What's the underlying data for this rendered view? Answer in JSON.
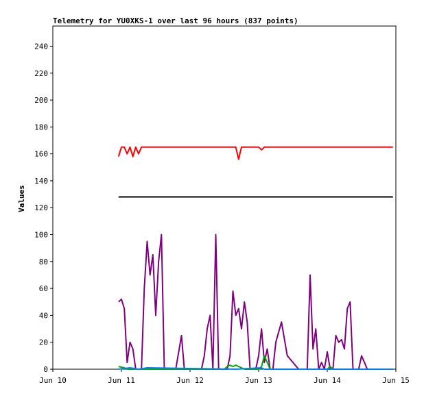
{
  "chart_data": {
    "type": "line",
    "title": "Telemetry for YU0XKS-1 over last 96 hours (837 points)",
    "xlabel": "",
    "ylabel": "Values",
    "xlim": [
      "2024-06-10",
      "2024-06-15"
    ],
    "ylim": [
      0,
      255
    ],
    "x_tick_labels": [
      "Jun 10",
      "Jun 11",
      "Jun 12",
      "Jun 13",
      "Jun 14",
      "Jun 15"
    ],
    "x_tick_values": [
      "2024-06-10",
      "2024-06-11",
      "2024-06-12",
      "2024-06-13",
      "2024-06-14",
      "2024-06-15"
    ],
    "y_ticks": [
      0,
      20,
      40,
      60,
      80,
      100,
      120,
      140,
      160,
      180,
      200,
      220,
      240
    ],
    "grid": false,
    "legend": "none",
    "colors": {
      "red": "#ff0000",
      "black": "#000000",
      "purple": "#800080",
      "green": "#00aa00",
      "blue": "#0080ff"
    },
    "series": [
      {
        "color": "#ff0000",
        "x": [
          "2024-06-10T23:00",
          "2024-06-11T00:00",
          "2024-06-11T01:00",
          "2024-06-11T02:00",
          "2024-06-11T03:00",
          "2024-06-11T04:00",
          "2024-06-11T05:00",
          "2024-06-11T06:00",
          "2024-06-11T07:00",
          "2024-06-11T08:00",
          "2024-06-11T09:00",
          "2024-06-11T10:00",
          "2024-06-11T12:00",
          "2024-06-11T14:00",
          "2024-06-11T16:00",
          "2024-06-12T00:00",
          "2024-06-12T12:00",
          "2024-06-12T16:00",
          "2024-06-12T17:00",
          "2024-06-12T18:00",
          "2024-06-13T00:00",
          "2024-06-13T01:00",
          "2024-06-13T02:00",
          "2024-06-14T00:00",
          "2024-06-14T23:00"
        ],
        "y": [
          158,
          165,
          165,
          160,
          165,
          158,
          165,
          160,
          165,
          165,
          165,
          165,
          165,
          165,
          165,
          165,
          165,
          165,
          156,
          165,
          165,
          163,
          165,
          165,
          165
        ]
      },
      {
        "color": "#000000",
        "x": [
          "2024-06-10T23:00",
          "2024-06-14T23:00"
        ],
        "y": [
          128,
          128
        ]
      },
      {
        "color": "#800080",
        "x": [
          "2024-06-10T23:00",
          "2024-06-11T00:00",
          "2024-06-11T01:00",
          "2024-06-11T02:00",
          "2024-06-11T03:00",
          "2024-06-11T04:00",
          "2024-06-11T05:00",
          "2024-06-11T06:00",
          "2024-06-11T07:00",
          "2024-06-11T08:00",
          "2024-06-11T09:00",
          "2024-06-11T10:00",
          "2024-06-11T11:00",
          "2024-06-11T12:00",
          "2024-06-11T13:00",
          "2024-06-11T14:00",
          "2024-06-11T15:00",
          "2024-06-11T16:00",
          "2024-06-11T17:00",
          "2024-06-11T18:00",
          "2024-06-11T19:00",
          "2024-06-11T21:00",
          "2024-06-11T22:00",
          "2024-06-11T23:00",
          "2024-06-12T00:00",
          "2024-06-12T02:00",
          "2024-06-12T04:00",
          "2024-06-12T05:00",
          "2024-06-12T06:00",
          "2024-06-12T07:00",
          "2024-06-12T08:00",
          "2024-06-12T09:00",
          "2024-06-12T10:00",
          "2024-06-12T11:00",
          "2024-06-12T12:00",
          "2024-06-12T13:00",
          "2024-06-12T14:00",
          "2024-06-12T15:00",
          "2024-06-12T16:00",
          "2024-06-12T17:00",
          "2024-06-12T18:00",
          "2024-06-12T19:00",
          "2024-06-12T20:00",
          "2024-06-12T21:00",
          "2024-06-12T22:00",
          "2024-06-12T23:00",
          "2024-06-13T00:00",
          "2024-06-13T01:00",
          "2024-06-13T02:00",
          "2024-06-13T03:00",
          "2024-06-13T04:00",
          "2024-06-13T05:00",
          "2024-06-13T06:00",
          "2024-06-13T08:00",
          "2024-06-13T10:00",
          "2024-06-13T14:00",
          "2024-06-13T15:00",
          "2024-06-13T16:00",
          "2024-06-13T17:00",
          "2024-06-13T18:00",
          "2024-06-13T19:00",
          "2024-06-13T20:00",
          "2024-06-13T21:00",
          "2024-06-13T22:00",
          "2024-06-13T23:00",
          "2024-06-14T00:00",
          "2024-06-14T01:00",
          "2024-06-14T02:00",
          "2024-06-14T03:00",
          "2024-06-14T04:00",
          "2024-06-14T05:00",
          "2024-06-14T06:00",
          "2024-06-14T07:00",
          "2024-06-14T08:00",
          "2024-06-14T09:00",
          "2024-06-14T10:00",
          "2024-06-14T11:00",
          "2024-06-14T12:00",
          "2024-06-14T13:00",
          "2024-06-14T14:00",
          "2024-06-14T23:00"
        ],
        "y": [
          50,
          52,
          45,
          5,
          20,
          15,
          0,
          0,
          0,
          60,
          95,
          70,
          85,
          40,
          80,
          100,
          0,
          0,
          0,
          0,
          0,
          25,
          0,
          0,
          0,
          0,
          0,
          10,
          30,
          40,
          0,
          100,
          0,
          0,
          0,
          0,
          10,
          58,
          40,
          45,
          30,
          50,
          35,
          0,
          0,
          0,
          10,
          30,
          5,
          15,
          0,
          0,
          20,
          35,
          10,
          0,
          0,
          0,
          0,
          70,
          15,
          30,
          0,
          5,
          0,
          13,
          0,
          0,
          25,
          20,
          22,
          15,
          45,
          50,
          0,
          0,
          0,
          10,
          5,
          0,
          0
        ]
      },
      {
        "color": "#00aa00",
        "x": [
          "2024-06-10T23:00",
          "2024-06-11T01:00",
          "2024-06-11T02:00",
          "2024-06-12T12:00",
          "2024-06-12T13:00",
          "2024-06-12T14:00",
          "2024-06-12T15:00",
          "2024-06-12T16:00",
          "2024-06-12T17:00",
          "2024-06-12T18:00",
          "2024-06-12T19:00",
          "2024-06-13T00:00",
          "2024-06-13T01:00",
          "2024-06-13T02:00",
          "2024-06-13T03:00",
          "2024-06-13T04:00",
          "2024-06-14T00:00",
          "2024-06-14T01:00",
          "2024-06-14T02:00",
          "2024-06-14T23:00"
        ],
        "y": [
          2,
          1,
          0,
          0,
          2,
          3,
          2,
          3,
          2,
          1,
          0,
          0,
          2,
          10,
          5,
          0,
          0,
          2,
          0,
          0
        ]
      },
      {
        "color": "#0080ff",
        "x": [
          "2024-06-10T23:00",
          "2024-06-11T03:00",
          "2024-06-11T06:00",
          "2024-06-11T09:00",
          "2024-06-12T16:00",
          "2024-06-13T01:00",
          "2024-06-13T02:00",
          "2024-06-14T23:00"
        ],
        "y": [
          0,
          1,
          0,
          1,
          0,
          1,
          0,
          0
        ]
      }
    ]
  }
}
